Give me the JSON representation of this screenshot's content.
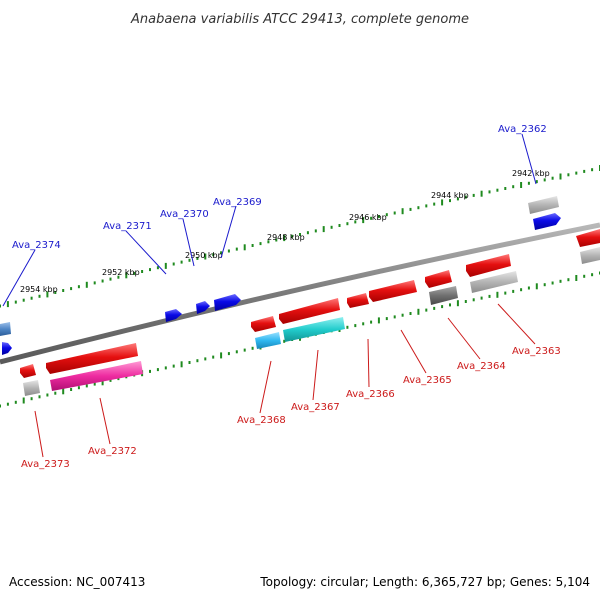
{
  "title": "Anabaena variabilis ATCC 29413, complete genome",
  "footer": {
    "accession": "Accession: NC_007413",
    "summary": "Topology: circular; Length: 6,365,727 bp; Genes: 5,104"
  },
  "colors": {
    "backbone": "#8a8a8a",
    "tick": "#1f8a1f",
    "forward_label": "#1a1acc",
    "reverse_label": "#cc1a1a",
    "red": "#e51010",
    "blue": "#0a0ae6",
    "steel": "#4f86c6",
    "gray": "#b4b4b4",
    "darkgray": "#707070",
    "cyan": "#22cccc",
    "skyblue": "#2fb8f0",
    "magenta": "#ee2ba0"
  },
  "kbp_labels": [
    "2942 kbp",
    "2944 kbp",
    "2946 kbp",
    "2948 kbp",
    "2950 kbp",
    "2952 kbp",
    "2954 kbp"
  ],
  "forward_labels": [
    "Ava_2362",
    "Ava_2369",
    "Ava_2370",
    "Ava_2371",
    "Ava_2374"
  ],
  "reverse_labels": [
    "Ava_2363",
    "Ava_2364",
    "Ava_2365",
    "Ava_2366",
    "Ava_2367",
    "Ava_2368",
    "Ava_2372",
    "Ava_2373"
  ]
}
